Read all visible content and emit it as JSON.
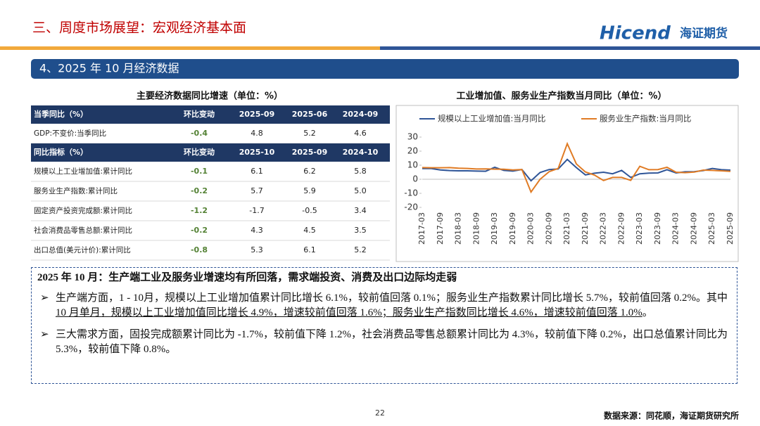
{
  "header": {
    "title": "三、周度市场展望：宏观经济基本面",
    "logo": "Hicend",
    "logo_cn": "海证期货"
  },
  "section": "4、2025 年 10 月经济数据",
  "table": {
    "title": "主要经济数据同比增速（单位：%）",
    "sections": [
      {
        "header": [
          "当季同比（%）",
          "环比变动",
          "2025-09",
          "2025-06",
          "2024-09"
        ],
        "rows": [
          [
            "GDP:不变价:当季同比",
            "-0.4",
            "4.8",
            "5.2",
            "4.6"
          ]
        ]
      },
      {
        "header": [
          "同比指标（%）",
          "环比变动",
          "2025-10",
          "2025-09",
          "2024-10"
        ],
        "rows": [
          [
            "规模以上工业增加值:累计同比",
            "-0.1",
            "6.1",
            "6.2",
            "5.8"
          ],
          [
            "服务业生产指数:累计同比",
            "-0.2",
            "5.7",
            "5.9",
            "5.0"
          ],
          [
            "固定资产投资完成额:累计同比",
            "-1.2",
            "-1.7",
            "-0.5",
            "3.4"
          ],
          [
            "社会消费品零售总额:累计同比",
            "-0.2",
            "4.3",
            "4.5",
            "3.5"
          ],
          [
            "出口总值(美元计价):累计同比",
            "-0.8",
            "5.3",
            "6.1",
            "5.2"
          ]
        ]
      }
    ]
  },
  "chart_data": {
    "type": "line",
    "title": "工业增加值、服务业生产指数当月同比（单位：%）",
    "categories": [
      "2017-03",
      null,
      "2017-09",
      null,
      "2018-03",
      null,
      "2018-09",
      null,
      "2019-03",
      null,
      "2019-09",
      null,
      "2020-03",
      null,
      "2020-09",
      null,
      "2021-03",
      null,
      "2021-09",
      null,
      "2022-03",
      null,
      "2022-09",
      null,
      "2023-03",
      null,
      "2023-09",
      null,
      "2024-03",
      null,
      "2024-09",
      null,
      "2025-03",
      null,
      "2025-09"
    ],
    "series": [
      {
        "name": "规模以上工业增加值:当月同比",
        "color": "#2f5597",
        "values": [
          7.6,
          7.6,
          6.6,
          6.2,
          6.0,
          6.0,
          5.8,
          5.7,
          8.5,
          6.3,
          5.8,
          6.9,
          -1.1,
          4.8,
          6.9,
          7.3,
          14.1,
          8.3,
          3.1,
          4.3,
          5.0,
          3.9,
          6.3,
          1.3,
          3.9,
          4.4,
          4.5,
          6.8,
          4.5,
          5.3,
          5.4,
          6.2,
          7.7,
          6.8,
          6.5
        ]
      },
      {
        "name": "服务业生产指数:当月同比",
        "color": "#e07b24",
        "values": [
          8.3,
          8.2,
          8.2,
          8.3,
          7.9,
          7.7,
          7.3,
          7.4,
          7.2,
          7.1,
          6.6,
          6.9,
          -9.1,
          0.0,
          5.4,
          7.7,
          25.3,
          10.9,
          5.2,
          3.0,
          -0.9,
          1.3,
          1.3,
          -0.8,
          9.2,
          6.8,
          6.9,
          8.5,
          5.0,
          4.7,
          5.1,
          6.5,
          6.3,
          6.0,
          5.6
        ]
      }
    ],
    "ylim": [
      -20,
      30
    ],
    "yticks": [
      -20,
      -10,
      0,
      10,
      20,
      30
    ],
    "legend": "top"
  },
  "summary": {
    "title": "2025 年 10 月：生产端工业及服务业增速均有所回落，需求端投资、消费及出口边际均走弱",
    "bullets": [
      {
        "text": "生产端方面，1 - 10月，规模以上工业增加值累计同比增长 6.1%，较前值回落 0.1%；服务业生产指数累计同比增长 5.7%，较前值回落 0.2%。其中 ",
        "underlined": "10 月单月，规模以上工业增加值同比增长 4.9%，增速较前值回落 1.6%；服务业生产指数同比增长 4.6%，增速较前值回落 1.0%",
        "tail": "。"
      },
      {
        "text": "三大需求方面，固投完成额累计同比为 -1.7%，较前值下降 1.2%，社会消费品零售总额累计同比为 4.3%，较前值下降 0.2%，出口总值累计同比为 5.3%，较前值下降 0.8%。"
      }
    ]
  },
  "footer": {
    "page": "22",
    "source": "数据来源：同花顺，海证期货研究所"
  }
}
